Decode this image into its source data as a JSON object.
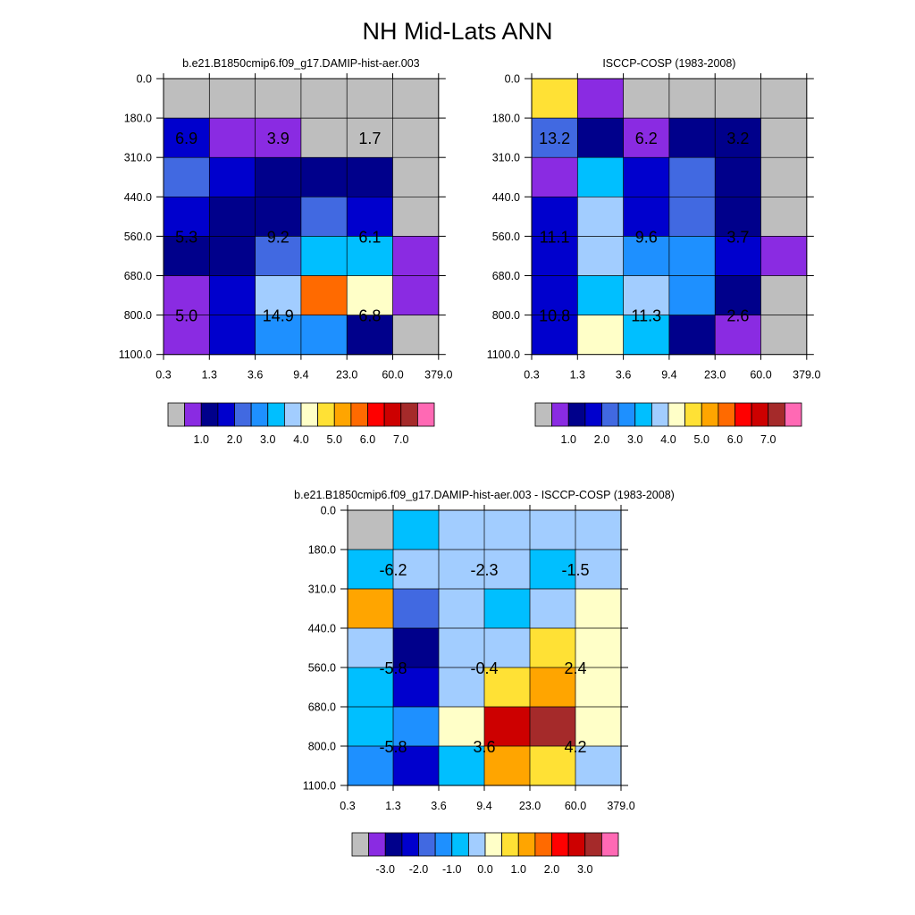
{
  "title": "NH Mid-Lats ANN",
  "chart_data": [
    {
      "type": "heatmap",
      "panel": "model",
      "title": "b.e21.B1850cmip6.f09_g17.DAMIP-hist-aer.003",
      "x_tick_labels": [
        "0.3",
        "1.3",
        "3.6",
        "9.4",
        "23.0",
        "60.0",
        "379.0"
      ],
      "y_tick_labels": [
        "0.0",
        "180.0",
        "310.0",
        "440.0",
        "560.0",
        "680.0",
        "800.0",
        "1100.0"
      ],
      "cell_colors": [
        [
          "#bebebe",
          "#bebebe",
          "#bebebe",
          "#bebebe",
          "#bebebe",
          "#bebebe"
        ],
        [
          "#0000cd",
          "#8a2be2",
          "#8a2be2",
          "#bebebe",
          "#bebebe",
          "#bebebe"
        ],
        [
          "#4169e1",
          "#0000cd",
          "#00008b",
          "#00008b",
          "#00008b",
          "#bebebe"
        ],
        [
          "#0000cd",
          "#00008b",
          "#00008b",
          "#4169e1",
          "#0000cd",
          "#bebebe"
        ],
        [
          "#00008b",
          "#00008b",
          "#4169e1",
          "#00bfff",
          "#00bfff",
          "#8a2be2"
        ],
        [
          "#8a2be2",
          "#0000cd",
          "#a2cdff",
          "#ff6a00",
          "#ffffc8",
          "#8a2be2"
        ],
        [
          "#8a2be2",
          "#0000cd",
          "#1e90ff",
          "#1e90ff",
          "#00008b",
          "#bebebe"
        ]
      ],
      "annotations": [
        {
          "col": 0.5,
          "row": 1.5,
          "text": "6.9"
        },
        {
          "col": 2.5,
          "row": 1.5,
          "text": "3.9"
        },
        {
          "col": 4.5,
          "row": 1.5,
          "text": "1.7"
        },
        {
          "col": 0.5,
          "row": 4.0,
          "text": "5.3"
        },
        {
          "col": 2.5,
          "row": 4.0,
          "text": "9.2"
        },
        {
          "col": 4.5,
          "row": 4.0,
          "text": "6.1"
        },
        {
          "col": 0.5,
          "row": 6.0,
          "text": "5.0"
        },
        {
          "col": 2.5,
          "row": 6.0,
          "text": "14.9"
        },
        {
          "col": 4.5,
          "row": 6.0,
          "text": "6.8"
        }
      ],
      "colorbar": {
        "colors": [
          "#bebebe",
          "#8a2be2",
          "#00008b",
          "#0000cd",
          "#4169e1",
          "#1e90ff",
          "#00bfff",
          "#a2cdff",
          "#ffffc8",
          "#ffe135",
          "#ffa500",
          "#ff6a00",
          "#ff0000",
          "#cd0000",
          "#a52a2a",
          "#ff69b4"
        ],
        "labels": [
          "1.0",
          "2.0",
          "3.0",
          "4.0",
          "5.0",
          "6.0",
          "7.0"
        ]
      }
    },
    {
      "type": "heatmap",
      "panel": "obs",
      "title": "ISCCP-COSP (1983-2008)",
      "x_tick_labels": [
        "0.3",
        "1.3",
        "3.6",
        "9.4",
        "23.0",
        "60.0",
        "379.0"
      ],
      "y_tick_labels": [
        "0.0",
        "180.0",
        "310.0",
        "440.0",
        "560.0",
        "680.0",
        "800.0",
        "1100.0"
      ],
      "cell_colors": [
        [
          "#ffe135",
          "#8a2be2",
          "#bebebe",
          "#bebebe",
          "#bebebe",
          "#bebebe"
        ],
        [
          "#4169e1",
          "#00008b",
          "#8a2be2",
          "#00008b",
          "#00008b",
          "#bebebe"
        ],
        [
          "#8a2be2",
          "#00bfff",
          "#0000cd",
          "#4169e1",
          "#00008b",
          "#bebebe"
        ],
        [
          "#0000cd",
          "#a2cdff",
          "#0000cd",
          "#4169e1",
          "#00008b",
          "#bebebe"
        ],
        [
          "#0000cd",
          "#a2cdff",
          "#1e90ff",
          "#1e90ff",
          "#0000cd",
          "#8a2be2"
        ],
        [
          "#0000cd",
          "#00bfff",
          "#a2cdff",
          "#1e90ff",
          "#00008b",
          "#bebebe"
        ],
        [
          "#0000cd",
          "#ffffc8",
          "#00bfff",
          "#00008b",
          "#8a2be2",
          "#bebebe"
        ]
      ],
      "annotations": [
        {
          "col": 0.5,
          "row": 1.5,
          "text": "13.2"
        },
        {
          "col": 2.5,
          "row": 1.5,
          "text": "6.2"
        },
        {
          "col": 4.5,
          "row": 1.5,
          "text": "3.2"
        },
        {
          "col": 0.5,
          "row": 4.0,
          "text": "11.1"
        },
        {
          "col": 2.5,
          "row": 4.0,
          "text": "9.6"
        },
        {
          "col": 4.5,
          "row": 4.0,
          "text": "3.7"
        },
        {
          "col": 0.5,
          "row": 6.0,
          "text": "10.8"
        },
        {
          "col": 2.5,
          "row": 6.0,
          "text": "11.3"
        },
        {
          "col": 4.5,
          "row": 6.0,
          "text": "2.6"
        }
      ],
      "colorbar": {
        "colors": [
          "#bebebe",
          "#8a2be2",
          "#00008b",
          "#0000cd",
          "#4169e1",
          "#1e90ff",
          "#00bfff",
          "#a2cdff",
          "#ffffc8",
          "#ffe135",
          "#ffa500",
          "#ff6a00",
          "#ff0000",
          "#cd0000",
          "#a52a2a",
          "#ff69b4"
        ],
        "labels": [
          "1.0",
          "2.0",
          "3.0",
          "4.0",
          "5.0",
          "6.0",
          "7.0"
        ]
      }
    },
    {
      "type": "heatmap",
      "panel": "diff",
      "title": "b.e21.B1850cmip6.f09_g17.DAMIP-hist-aer.003 - ISCCP-COSP (1983-2008)",
      "x_tick_labels": [
        "0.3",
        "1.3",
        "3.6",
        "9.4",
        "23.0",
        "60.0",
        "379.0"
      ],
      "y_tick_labels": [
        "0.0",
        "180.0",
        "310.0",
        "440.0",
        "560.0",
        "680.0",
        "800.0",
        "1100.0"
      ],
      "cell_colors": [
        [
          "#bebebe",
          "#00bfff",
          "#a2cdff",
          "#a2cdff",
          "#a2cdff",
          "#a2cdff"
        ],
        [
          "#00bfff",
          "#a2cdff",
          "#a2cdff",
          "#a2cdff",
          "#00bfff",
          "#a2cdff"
        ],
        [
          "#ffa500",
          "#4169e1",
          "#a2cdff",
          "#00bfff",
          "#a2cdff",
          "#ffffc8"
        ],
        [
          "#a2cdff",
          "#00008b",
          "#a2cdff",
          "#a2cdff",
          "#ffe135",
          "#ffffc8"
        ],
        [
          "#00bfff",
          "#0000cd",
          "#a2cdff",
          "#ffe135",
          "#ffa500",
          "#ffffc8"
        ],
        [
          "#00bfff",
          "#1e90ff",
          "#ffffc8",
          "#cd0000",
          "#a52a2a",
          "#ffffc8"
        ],
        [
          "#1e90ff",
          "#0000cd",
          "#00bfff",
          "#ffa500",
          "#ffe135",
          "#a2cdff"
        ]
      ],
      "annotations": [
        {
          "col": 1.0,
          "row": 1.5,
          "text": "-6.2"
        },
        {
          "col": 3.0,
          "row": 1.5,
          "text": "-2.3"
        },
        {
          "col": 5.0,
          "row": 1.5,
          "text": "-1.5"
        },
        {
          "col": 1.0,
          "row": 4.0,
          "text": "-5.8"
        },
        {
          "col": 3.0,
          "row": 4.0,
          "text": "-0.4"
        },
        {
          "col": 5.0,
          "row": 4.0,
          "text": "2.4"
        },
        {
          "col": 1.0,
          "row": 6.0,
          "text": "-5.8"
        },
        {
          "col": 3.0,
          "row": 6.0,
          "text": "3.6"
        },
        {
          "col": 5.0,
          "row": 6.0,
          "text": "4.2"
        }
      ],
      "colorbar": {
        "colors": [
          "#bebebe",
          "#8a2be2",
          "#00008b",
          "#0000cd",
          "#4169e1",
          "#1e90ff",
          "#00bfff",
          "#a2cdff",
          "#ffffc8",
          "#ffe135",
          "#ffa500",
          "#ff6a00",
          "#ff0000",
          "#cd0000",
          "#a52a2a",
          "#ff69b4"
        ],
        "labels": [
          "-3.0",
          "-2.0",
          "-1.0",
          "0.0",
          "1.0",
          "2.0",
          "3.0"
        ]
      }
    }
  ]
}
